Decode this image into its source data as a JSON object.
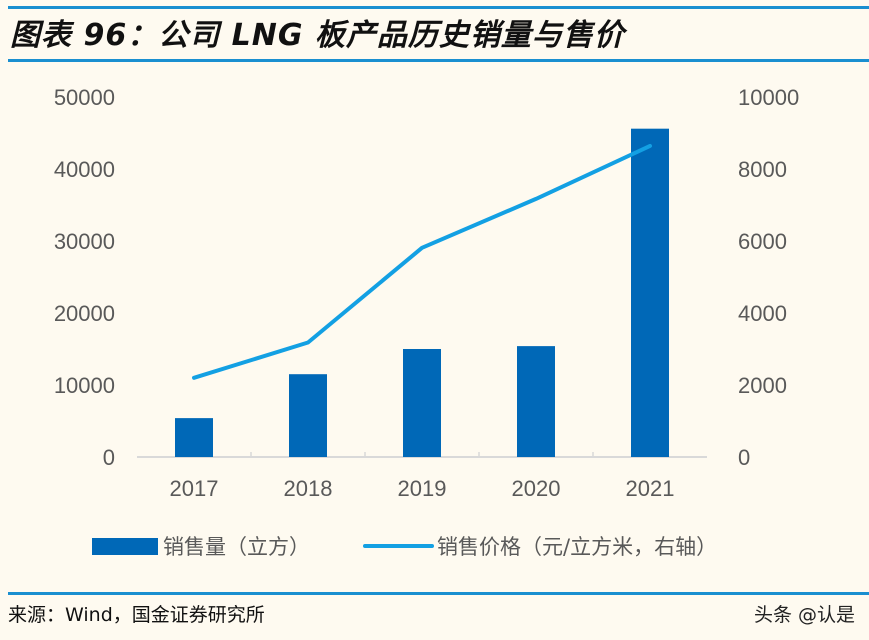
{
  "title": "图表 96：公司 LNG 板产品历史销量与售价",
  "source": "来源：Wind，国金证券研究所",
  "watermark": "头条 @认是",
  "colors": {
    "bar": "#0068b7",
    "line": "#13a0e3",
    "rule": "#1a8fd0",
    "background": "#fefaf0"
  },
  "chart_data": {
    "type": "bar+line",
    "categories": [
      "2017",
      "2018",
      "2019",
      "2020",
      "2021"
    ],
    "series": [
      {
        "name": "销售量（立方）",
        "type": "bar",
        "axis": "left",
        "values": [
          5400,
          11500,
          15000,
          15400,
          45600
        ]
      },
      {
        "name": "销售价格（元/立方米，右轴）",
        "type": "line",
        "axis": "right",
        "values": [
          2200,
          3180,
          5810,
          7170,
          8640
        ]
      }
    ],
    "y_left": {
      "range": [
        0,
        50000
      ],
      "ticks": [
        "0",
        "10000",
        "20000",
        "30000",
        "40000",
        "50000"
      ]
    },
    "y_right": {
      "range": [
        0,
        10000
      ],
      "ticks": [
        "0",
        "2000",
        "4000",
        "6000",
        "8000",
        "10000"
      ]
    },
    "grid": false,
    "legend_position": "bottom"
  }
}
